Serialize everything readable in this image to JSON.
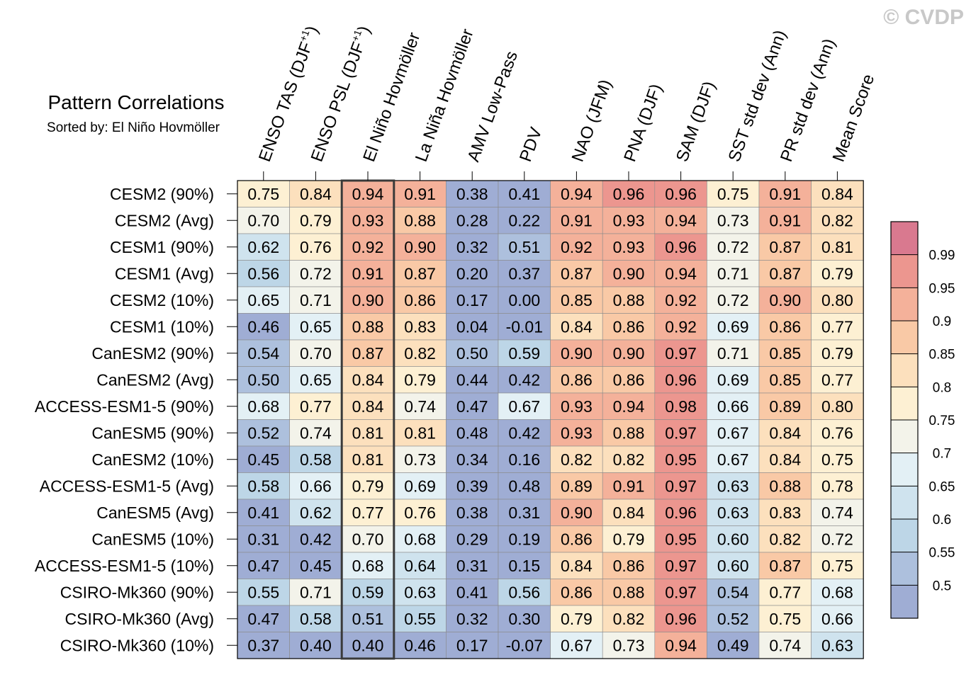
{
  "watermark": "© CVDP",
  "chart_data": {
    "type": "heatmap",
    "title": "Pattern Correlations",
    "subtitle": "Sorted by: El Niño Hovmöller",
    "highlighted_column": "El Niño Hovmöller",
    "columns": [
      {
        "base": "ENSO TAS (DJF",
        "sup": "+1",
        "tail": ")"
      },
      {
        "base": "ENSO PSL (DJF",
        "sup": "+1",
        "tail": ")"
      },
      {
        "base": "El Niño Hovmöller",
        "sup": "",
        "tail": ""
      },
      {
        "base": "La Niña Hovmöller",
        "sup": "",
        "tail": ""
      },
      {
        "base": "AMV Low-Pass",
        "sup": "",
        "tail": ""
      },
      {
        "base": "PDV",
        "sup": "",
        "tail": ""
      },
      {
        "base": "NAO (JFM)",
        "sup": "",
        "tail": ""
      },
      {
        "base": "PNA (DJF)",
        "sup": "",
        "tail": ""
      },
      {
        "base": "SAM (DJF)",
        "sup": "",
        "tail": ""
      },
      {
        "base": "SST std dev (Ann)",
        "sup": "",
        "tail": ""
      },
      {
        "base": "PR std dev (Ann)",
        "sup": "",
        "tail": ""
      },
      {
        "base": "Mean Score",
        "sup": "",
        "tail": ""
      }
    ],
    "rows": [
      "CESM2 (90%)",
      "CESM2 (Avg)",
      "CESM1 (90%)",
      "CESM1 (Avg)",
      "CESM2 (10%)",
      "CESM1 (10%)",
      "CanESM2 (90%)",
      "CanESM2 (Avg)",
      "ACCESS-ESM1-5 (90%)",
      "CanESM5 (90%)",
      "CanESM2 (10%)",
      "ACCESS-ESM1-5 (Avg)",
      "CanESM5 (Avg)",
      "CanESM5 (10%)",
      "ACCESS-ESM1-5 (10%)",
      "CSIRO-Mk360 (90%)",
      "CSIRO-Mk360 (Avg)",
      "CSIRO-Mk360 (10%)"
    ],
    "values": [
      [
        "0.75",
        "0.84",
        "0.94",
        "0.91",
        "0.38",
        "0.41",
        "0.94",
        "0.96",
        "0.96",
        "0.75",
        "0.91",
        "0.84"
      ],
      [
        "0.70",
        "0.79",
        "0.93",
        "0.88",
        "0.28",
        "0.22",
        "0.91",
        "0.93",
        "0.94",
        "0.73",
        "0.91",
        "0.82"
      ],
      [
        "0.62",
        "0.76",
        "0.92",
        "0.90",
        "0.32",
        "0.51",
        "0.92",
        "0.93",
        "0.96",
        "0.72",
        "0.87",
        "0.81"
      ],
      [
        "0.56",
        "0.72",
        "0.91",
        "0.87",
        "0.20",
        "0.37",
        "0.87",
        "0.90",
        "0.94",
        "0.71",
        "0.87",
        "0.79"
      ],
      [
        "0.65",
        "0.71",
        "0.90",
        "0.86",
        "0.17",
        "0.00",
        "0.85",
        "0.88",
        "0.92",
        "0.72",
        "0.90",
        "0.80"
      ],
      [
        "0.46",
        "0.65",
        "0.88",
        "0.83",
        "0.04",
        "-0.01",
        "0.84",
        "0.86",
        "0.92",
        "0.69",
        "0.86",
        "0.77"
      ],
      [
        "0.54",
        "0.70",
        "0.87",
        "0.82",
        "0.50",
        "0.59",
        "0.90",
        "0.90",
        "0.97",
        "0.71",
        "0.85",
        "0.79"
      ],
      [
        "0.50",
        "0.65",
        "0.84",
        "0.79",
        "0.44",
        "0.42",
        "0.86",
        "0.86",
        "0.96",
        "0.69",
        "0.85",
        "0.77"
      ],
      [
        "0.68",
        "0.77",
        "0.84",
        "0.74",
        "0.47",
        "0.67",
        "0.93",
        "0.94",
        "0.98",
        "0.66",
        "0.89",
        "0.80"
      ],
      [
        "0.52",
        "0.74",
        "0.81",
        "0.81",
        "0.48",
        "0.42",
        "0.93",
        "0.88",
        "0.97",
        "0.67",
        "0.84",
        "0.76"
      ],
      [
        "0.45",
        "0.58",
        "0.81",
        "0.73",
        "0.34",
        "0.16",
        "0.82",
        "0.82",
        "0.95",
        "0.67",
        "0.84",
        "0.75"
      ],
      [
        "0.58",
        "0.66",
        "0.79",
        "0.69",
        "0.39",
        "0.48",
        "0.89",
        "0.91",
        "0.97",
        "0.63",
        "0.88",
        "0.78"
      ],
      [
        "0.41",
        "0.62",
        "0.77",
        "0.76",
        "0.38",
        "0.31",
        "0.90",
        "0.84",
        "0.96",
        "0.63",
        "0.83",
        "0.74"
      ],
      [
        "0.31",
        "0.42",
        "0.70",
        "0.68",
        "0.29",
        "0.19",
        "0.86",
        "0.79",
        "0.95",
        "0.60",
        "0.82",
        "0.72"
      ],
      [
        "0.47",
        "0.45",
        "0.68",
        "0.64",
        "0.31",
        "0.15",
        "0.84",
        "0.86",
        "0.97",
        "0.60",
        "0.87",
        "0.75"
      ],
      [
        "0.55",
        "0.71",
        "0.59",
        "0.63",
        "0.41",
        "0.56",
        "0.86",
        "0.88",
        "0.97",
        "0.54",
        "0.77",
        "0.68"
      ],
      [
        "0.47",
        "0.58",
        "0.51",
        "0.55",
        "0.32",
        "0.30",
        "0.79",
        "0.82",
        "0.96",
        "0.52",
        "0.75",
        "0.66"
      ],
      [
        "0.37",
        "0.40",
        "0.40",
        "0.46",
        "0.17",
        "-0.07",
        "0.67",
        "0.73",
        "0.94",
        "0.49",
        "0.74",
        "0.63"
      ]
    ],
    "colorbar": {
      "levels": [
        0.5,
        0.55,
        0.6,
        0.65,
        0.7,
        0.75,
        0.8,
        0.85,
        0.9,
        0.95,
        0.99
      ],
      "tick_labels": [
        "0.5",
        "0.55",
        "0.6",
        "0.65",
        "0.7",
        "0.75",
        "0.8",
        "0.85",
        "0.9",
        "0.95",
        "0.99"
      ],
      "colors": [
        "#9fadd4",
        "#adc0dd",
        "#bdd6e7",
        "#cfe3ee",
        "#e3f0f5",
        "#f3f3ea",
        "#fdf0d3",
        "#fce0bd",
        "#f9c9a6",
        "#f4b19a",
        "#ec968f",
        "#d9798f"
      ]
    }
  }
}
